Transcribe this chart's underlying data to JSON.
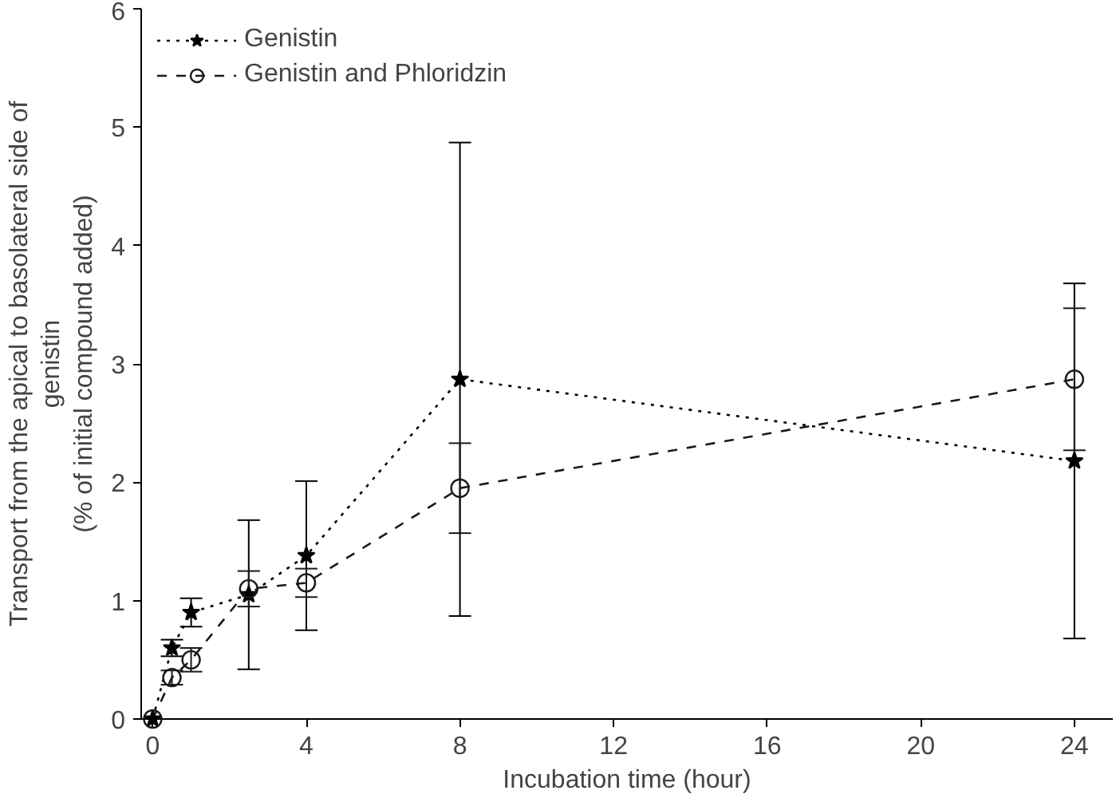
{
  "chart_data": {
    "type": "line",
    "xlabel": "Incubation time (hour)",
    "ylabel": "Transport from the apical to basolateral side of\ngenistin\n(% of initial compound added)",
    "x": [
      0,
      0.5,
      1,
      2.5,
      4,
      8,
      24
    ],
    "series": [
      {
        "name": "Genistin",
        "color": "#000000",
        "marker": "star",
        "line_style": "dotted",
        "values": [
          0,
          0.6,
          0.9,
          1.05,
          1.38,
          2.87,
          2.18
        ],
        "errors": [
          null,
          0.07,
          0.12,
          0.63,
          0.63,
          2.0,
          1.5
        ]
      },
      {
        "name": "Genistin and Phloridzin",
        "color": "#1a1a1a",
        "marker": "circle",
        "line_style": "dashed",
        "values": [
          0,
          0.35,
          0.5,
          1.1,
          1.15,
          1.95,
          2.87
        ],
        "errors": [
          null,
          0.06,
          0.1,
          0.15,
          0.12,
          0.38,
          0.6
        ]
      }
    ],
    "xlim": [
      -0.3,
      25
    ],
    "xticks": [
      0,
      4,
      8,
      12,
      16,
      20,
      24
    ],
    "ylim": [
      0,
      6
    ],
    "yticks": [
      0,
      1,
      2,
      3,
      4,
      5,
      6
    ],
    "grid": false,
    "legend": "top left"
  }
}
